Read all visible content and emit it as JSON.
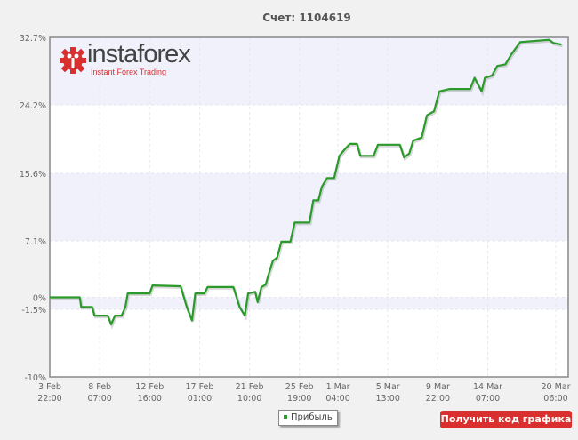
{
  "header": {
    "title": "Счет: 1104619"
  },
  "logo": {
    "name": "instaforex",
    "tagline": "Instant Forex Trading"
  },
  "legend": {
    "label": "Прибыль"
  },
  "button": {
    "get_code": "Получить код графика"
  },
  "colors": {
    "line": "#2a9a2a",
    "band": "#f1f1fc",
    "button": "#d9302f"
  },
  "chart_data": {
    "type": "line",
    "title": "Счет: 1104619",
    "ylim": [
      -10,
      32.7
    ],
    "y_ticks": [
      "32.7%",
      "24.2%",
      "15.6%",
      "7.1%",
      "0%",
      "-1.5%",
      "-10%"
    ],
    "y_tick_values": [
      32.7,
      24.2,
      15.6,
      7.1,
      0,
      -1.5,
      -10
    ],
    "x_ticks": [
      [
        "3 Feb",
        "22:00"
      ],
      [
        "8 Feb",
        "07:00"
      ],
      [
        "12 Feb",
        "16:00"
      ],
      [
        "17 Feb",
        "01:00"
      ],
      [
        "21 Feb",
        "10:00"
      ],
      [
        "25 Feb",
        "19:00"
      ],
      [
        "1 Mar",
        "04:00"
      ],
      [
        "5 Mar",
        "13:00"
      ],
      [
        "9 Mar",
        "22:00"
      ],
      [
        "14 Mar",
        "07:00"
      ],
      [
        "20 Mar",
        "06:00"
      ]
    ],
    "grid": true,
    "legend_position": "bottom-center",
    "series": [
      {
        "name": "Прибыль",
        "points": [
          [
            "3 Feb 22:00",
            0.0
          ],
          [
            "6 Feb 13:00",
            0.0
          ],
          [
            "6 Feb 16:00",
            -1.2
          ],
          [
            "7 Feb 15:00",
            -1.2
          ],
          [
            "7 Feb 20:00",
            -2.3
          ],
          [
            "9 Feb 00:00",
            -2.3
          ],
          [
            "9 Feb 07:00",
            -3.4
          ],
          [
            "9 Feb 15:00",
            -2.3
          ],
          [
            "10 Feb 05:00",
            -2.3
          ],
          [
            "10 Feb 13:00",
            -1.2
          ],
          [
            "10 Feb 18:00",
            0.5
          ],
          [
            "12 Feb 16:00",
            0.5
          ],
          [
            "12 Feb 22:00",
            1.5
          ],
          [
            "15 Feb 09:00",
            1.4
          ],
          [
            "15 Feb 22:00",
            -1.2
          ],
          [
            "16 Feb 09:00",
            -2.9
          ],
          [
            "16 Feb 16:00",
            0.5
          ],
          [
            "17 Feb 11:00",
            0.5
          ],
          [
            "17 Feb 18:00",
            1.3
          ],
          [
            "20 Feb 00:00",
            1.3
          ],
          [
            "20 Feb 13:00",
            -1.2
          ],
          [
            "21 Feb 00:00",
            -2.3
          ],
          [
            "21 Feb 07:00",
            0.5
          ],
          [
            "21 Feb 22:00",
            0.7
          ],
          [
            "22 Feb 03:00",
            -0.6
          ],
          [
            "22 Feb 11:00",
            1.3
          ],
          [
            "22 Feb 20:00",
            1.6
          ],
          [
            "23 Feb 01:00",
            2.7
          ],
          [
            "23 Feb 11:00",
            4.6
          ],
          [
            "23 Feb 20:00",
            5.0
          ],
          [
            "24 Feb 05:00",
            7.0
          ],
          [
            "25 Feb 00:00",
            7.0
          ],
          [
            "25 Feb 09:00",
            9.4
          ],
          [
            "26 Feb 16:00",
            9.4
          ],
          [
            "27 Feb 00:00",
            12.2
          ],
          [
            "27 Feb 11:00",
            12.2
          ],
          [
            "27 Feb 18:00",
            13.9
          ],
          [
            "28 Feb 05:00",
            15.0
          ],
          [
            "28 Feb 20:00",
            15.0
          ],
          [
            "1 Mar 07:00",
            17.8
          ],
          [
            "1 Mar 18:00",
            18.6
          ],
          [
            "2 Mar 05:00",
            19.3
          ],
          [
            "2 Mar 20:00",
            19.3
          ],
          [
            "3 Mar 03:00",
            17.8
          ],
          [
            "4 Mar 07:00",
            17.8
          ],
          [
            "4 Mar 16:00",
            19.2
          ],
          [
            "6 Mar 14:00",
            19.2
          ],
          [
            "6 Mar 23:00",
            17.6
          ],
          [
            "7 Mar 10:00",
            18.1
          ],
          [
            "7 Mar 18:00",
            19.7
          ],
          [
            "8 Mar 12:00",
            20.1
          ],
          [
            "8 Mar 23:00",
            22.9
          ],
          [
            "9 Mar 14:00",
            23.4
          ],
          [
            "10 Mar 01:00",
            25.9
          ],
          [
            "10 Mar 23:00",
            26.2
          ],
          [
            "12 Mar 18:00",
            26.2
          ],
          [
            "13 Mar 03:00",
            27.6
          ],
          [
            "13 Mar 12:00",
            26.6
          ],
          [
            "13 Mar 18:00",
            25.9
          ],
          [
            "14 Mar 01:00",
            27.6
          ],
          [
            "14 Mar 16:00",
            27.9
          ],
          [
            "15 Mar 03:00",
            29.1
          ],
          [
            "15 Mar 20:00",
            29.3
          ],
          [
            "16 Mar 08:00",
            30.5
          ],
          [
            "17 Mar 03:00",
            32.1
          ],
          [
            "19 Mar 16:00",
            32.4
          ],
          [
            "20 Mar 01:00",
            32.0
          ],
          [
            "20 Mar 18:00",
            31.8
          ]
        ]
      }
    ]
  }
}
